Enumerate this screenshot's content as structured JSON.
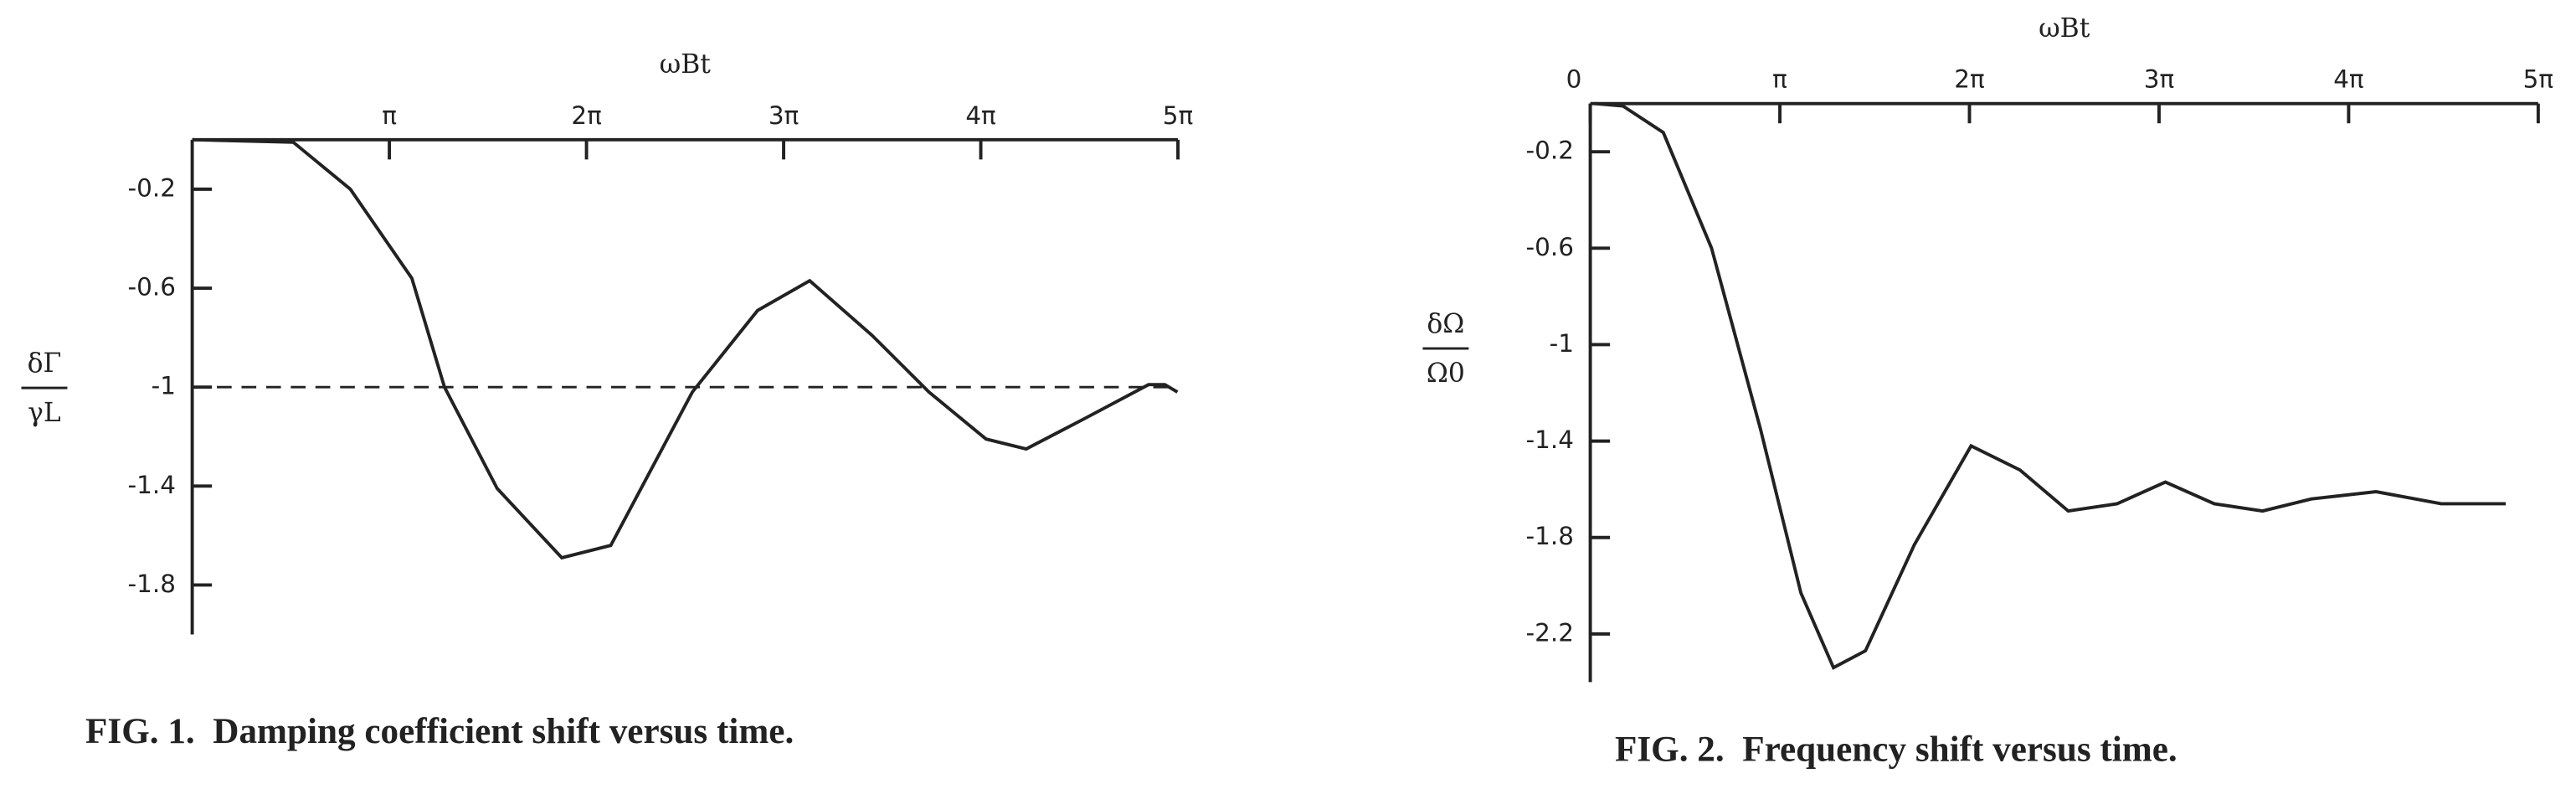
{
  "chart_data": [
    {
      "type": "line",
      "caption": "FIG. 1.  Damping coefficient shift versus time.",
      "xlabel": "ωBt",
      "ylabel_numerator": "δΓ",
      "ylabel_denominator": "γL",
      "xlim": [
        0,
        15.708
      ],
      "ylim": [
        -2.0,
        0
      ],
      "xticks": [
        {
          "value": 3.1416,
          "label": "π"
        },
        {
          "value": 6.2832,
          "label": "2π"
        },
        {
          "value": 9.4248,
          "label": "3π"
        },
        {
          "value": 12.5664,
          "label": "4π"
        },
        {
          "value": 15.708,
          "label": "5π"
        }
      ],
      "yticks": [
        -0.2,
        -0.6,
        -1.0,
        -1.4,
        -1.8
      ],
      "reference_line": -1.0,
      "color": "#222",
      "x": [
        0,
        1.61,
        2.52,
        3.5,
        4.02,
        4.86,
        5.89,
        6.67,
        7.97,
        9.01,
        9.84,
        10.83,
        11.74,
        12.65,
        13.29,
        14.2,
        15.24,
        15.5,
        15.7
      ],
      "values": [
        0,
        -0.01,
        -0.2,
        -0.56,
        -1.0,
        -1.41,
        -1.69,
        -1.64,
        -1.02,
        -0.69,
        -0.57,
        -0.79,
        -1.02,
        -1.21,
        -1.25,
        -1.13,
        -0.99,
        -0.99,
        -1.02
      ]
    },
    {
      "type": "line",
      "caption": "FIG. 2.  Frequency shift versus time.",
      "xlabel": "ωBt",
      "ylabel_numerator": "δΩ",
      "ylabel_denominator": "Ω0",
      "xlim": [
        0,
        15.708
      ],
      "ylim": [
        -2.4,
        0
      ],
      "xticks": [
        0,
        {
          "value": 3.1416,
          "label": "π"
        },
        {
          "value": 6.2832,
          "label": "2π"
        },
        {
          "value": 9.4248,
          "label": "3π"
        },
        {
          "value": 12.5664,
          "label": "4π"
        },
        {
          "value": 15.708,
          "label": "5π"
        }
      ],
      "yticks": [
        -0.2,
        -0.6,
        -1.0,
        -1.4,
        -1.8,
        -2.2
      ],
      "color": "#222",
      "x": [
        0.08,
        0.54,
        1.21,
        2.01,
        2.82,
        3.49,
        4.03,
        4.56,
        5.37,
        6.31,
        7.12,
        7.92,
        8.73,
        9.53,
        10.34,
        11.14,
        11.95,
        13.02,
        14.1,
        15.17
      ],
      "values": [
        0,
        -0.01,
        -0.12,
        -0.6,
        -1.35,
        -2.03,
        -2.34,
        -2.27,
        -1.83,
        -1.42,
        -1.52,
        -1.69,
        -1.66,
        -1.57,
        -1.66,
        -1.69,
        -1.64,
        -1.61,
        -1.66,
        -1.66
      ]
    }
  ]
}
